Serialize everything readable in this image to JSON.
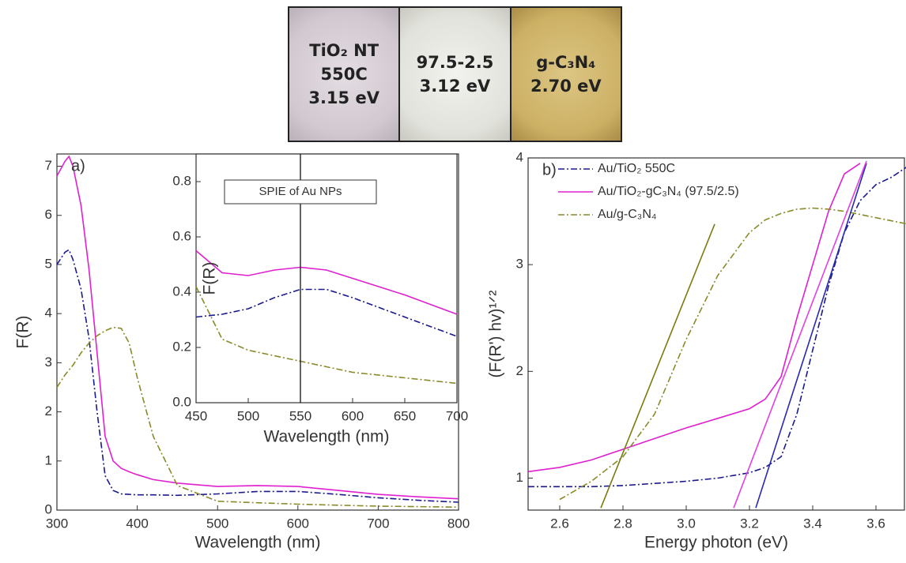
{
  "photos": [
    {
      "lines": [
        "TiO₂ NT",
        "550C",
        "3.15 eV"
      ]
    },
    {
      "lines": [
        "97.5-2.5",
        "3.12 eV"
      ]
    },
    {
      "lines": [
        "g-C₃N₄",
        "2.70 eV"
      ]
    }
  ],
  "chart_data": [
    {
      "type": "line",
      "label": "a)",
      "xlabel": "Wavelength (nm)",
      "ylabel": "F(R)",
      "xlim": [
        300,
        800
      ],
      "ylim": [
        0,
        7.25
      ],
      "xticks": [
        300,
        400,
        500,
        600,
        700,
        800
      ],
      "yticks": [
        0,
        1,
        2,
        3,
        4,
        5,
        6,
        7
      ],
      "x": [
        300,
        310,
        315,
        320,
        330,
        340,
        350,
        360,
        370,
        380,
        390,
        400,
        420,
        450,
        500,
        550,
        600,
        650,
        700,
        750,
        800
      ],
      "series": [
        {
          "color": "#1a1a8c",
          "dash": "dashdot",
          "values": [
            5.0,
            5.25,
            5.3,
            5.1,
            4.5,
            3.5,
            2.0,
            0.7,
            0.4,
            0.33,
            0.32,
            0.31,
            0.31,
            0.3,
            0.33,
            0.38,
            0.38,
            0.32,
            0.25,
            0.2,
            0.16
          ]
        },
        {
          "color": "#e020d0",
          "dash": "solid",
          "values": [
            6.8,
            7.1,
            7.2,
            7.0,
            6.2,
            4.9,
            3.2,
            1.5,
            1.0,
            0.85,
            0.78,
            0.72,
            0.62,
            0.55,
            0.48,
            0.5,
            0.48,
            0.4,
            0.32,
            0.27,
            0.23
          ]
        },
        {
          "color": "#8a8a2a",
          "dash": "dashdot",
          "values": [
            2.5,
            2.75,
            2.85,
            2.95,
            3.2,
            3.4,
            3.55,
            3.65,
            3.72,
            3.7,
            3.4,
            2.7,
            1.5,
            0.5,
            0.18,
            0.15,
            0.12,
            0.1,
            0.08,
            0.07,
            0.06
          ]
        }
      ],
      "inset": {
        "type": "line",
        "xlabel": "Wavelength (nm)",
        "ylabel": "F(R)",
        "annotation": "SPIE of Au NPs",
        "vline": 550,
        "xlim": [
          450,
          700
        ],
        "ylim": [
          0,
          0.9
        ],
        "xticks": [
          450,
          500,
          550,
          600,
          650,
          700
        ],
        "yticks": [
          {
            "value": 0,
            "label": "0.0"
          },
          0.2,
          0.4,
          0.6,
          0.8
        ],
        "x": [
          450,
          475,
          500,
          525,
          550,
          575,
          600,
          650,
          700
        ],
        "series": [
          {
            "color": "#e020d0",
            "dash": "solid",
            "values": [
              0.55,
              0.47,
              0.46,
              0.48,
              0.49,
              0.48,
              0.45,
              0.39,
              0.32
            ]
          },
          {
            "color": "#1a1a8c",
            "dash": "dashdot",
            "values": [
              0.31,
              0.32,
              0.34,
              0.38,
              0.41,
              0.41,
              0.38,
              0.31,
              0.24
            ]
          },
          {
            "color": "#8a8a2a",
            "dash": "dashdot",
            "values": [
              0.42,
              0.23,
              0.19,
              0.17,
              0.15,
              0.13,
              0.11,
              0.09,
              0.07
            ]
          }
        ]
      }
    },
    {
      "type": "line",
      "label": "b)",
      "xlabel": "Energy photon (eV)",
      "ylabel": "(F(R') hv)¹ᐟ²",
      "legend": "upper left",
      "xlim": [
        2.5,
        3.69
      ],
      "ylim": [
        0.7,
        4.0
      ],
      "xticks": [
        2.6,
        2.8,
        {
          "value": 3.0,
          "label": "3.0"
        },
        3.2,
        3.4,
        3.6
      ],
      "yticks": [
        1,
        2,
        3,
        4
      ],
      "x": [
        2.5,
        2.6,
        2.7,
        2.8,
        2.9,
        3.0,
        3.1,
        3.2,
        3.25,
        3.3,
        3.35,
        3.4,
        3.45,
        3.5,
        3.55,
        3.6,
        3.65,
        3.7
      ],
      "series": [
        {
          "name": "Au/TiO₂ 550C",
          "color": "#1a1a8c",
          "dash": "dashdot",
          "values": [
            0.92,
            0.92,
            0.92,
            0.93,
            0.95,
            0.97,
            1.0,
            1.05,
            1.1,
            1.2,
            1.6,
            2.2,
            2.8,
            3.3,
            3.6,
            3.75,
            3.82,
            3.92
          ]
        },
        {
          "name": "Au/TiO₂-gC₃N₄ (97.5/2.5)",
          "color": "#e020d0",
          "dash": "solid",
          "values": [
            1.06,
            1.1,
            1.17,
            1.27,
            1.37,
            1.47,
            1.56,
            1.65,
            1.74,
            1.95,
            2.5,
            3.0,
            3.5,
            3.85,
            3.95,
            null,
            null,
            null
          ]
        },
        {
          "name": "Au/g-C₃N₄",
          "color": "#8a8a2a",
          "dash": "dashdot",
          "values": [
            null,
            0.8,
            0.97,
            1.2,
            1.6,
            2.3,
            2.9,
            3.3,
            3.42,
            3.48,
            3.52,
            3.53,
            3.52,
            3.5,
            3.47,
            3.44,
            3.41,
            3.38
          ]
        }
      ],
      "fit_lines": [
        {
          "color": "#2a2ab0",
          "x": [
            3.22,
            3.57
          ],
          "y": [
            0.72,
            3.95
          ]
        },
        {
          "color": "#e040e0",
          "x": [
            3.15,
            3.57
          ],
          "y": [
            0.72,
            3.97
          ]
        },
        {
          "color": "#7a7a10",
          "x": [
            2.73,
            3.09
          ],
          "y": [
            0.72,
            3.38
          ]
        }
      ]
    }
  ]
}
